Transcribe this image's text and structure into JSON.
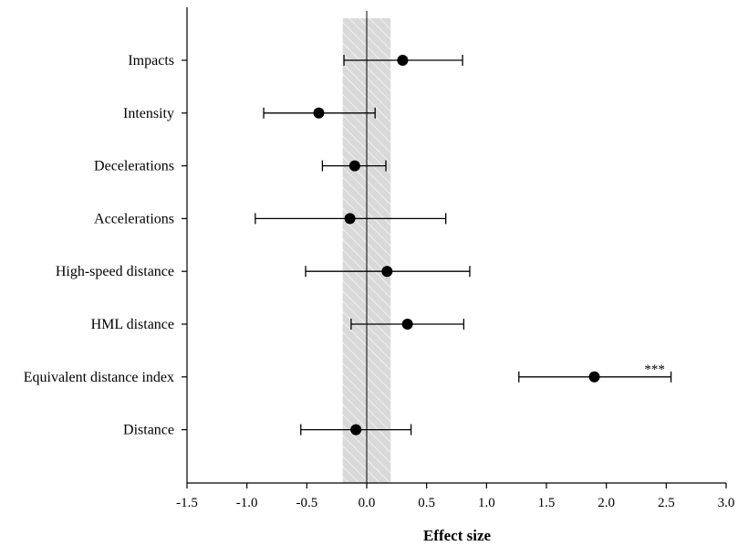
{
  "chart_data": {
    "type": "forest",
    "xlabel": "Effect size",
    "xlim": [
      -1.5,
      3.0
    ],
    "xticks": [
      "-1.5",
      "-1.0",
      "-0.5",
      "0.0",
      "0.5",
      "1.0",
      "1.5",
      "2.0",
      "2.5",
      "3.0"
    ],
    "reference_band": [
      -0.2,
      0.2
    ],
    "reference_line": 0.0,
    "grid": false,
    "rows": [
      {
        "label": "Impacts",
        "estimate": 0.3,
        "ci_low": -0.19,
        "ci_high": 0.8,
        "annotation": ""
      },
      {
        "label": "Intensity",
        "estimate": -0.4,
        "ci_low": -0.86,
        "ci_high": 0.07,
        "annotation": ""
      },
      {
        "label": "Decelerations",
        "estimate": -0.1,
        "ci_low": -0.37,
        "ci_high": 0.16,
        "annotation": ""
      },
      {
        "label": "Accelerations",
        "estimate": -0.14,
        "ci_low": -0.93,
        "ci_high": 0.66,
        "annotation": ""
      },
      {
        "label": "High-speed distance",
        "estimate": 0.17,
        "ci_low": -0.51,
        "ci_high": 0.86,
        "annotation": ""
      },
      {
        "label": "HML distance",
        "estimate": 0.34,
        "ci_low": -0.13,
        "ci_high": 0.81,
        "annotation": ""
      },
      {
        "label": "Equivalent distance index",
        "estimate": 1.9,
        "ci_low": 1.27,
        "ci_high": 2.54,
        "annotation": "***"
      },
      {
        "label": "Distance",
        "estimate": -0.09,
        "ci_low": -0.55,
        "ci_high": 0.37,
        "annotation": ""
      }
    ]
  }
}
